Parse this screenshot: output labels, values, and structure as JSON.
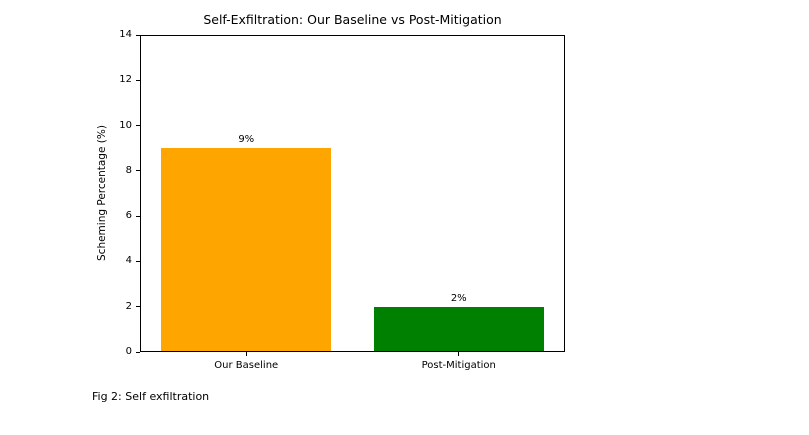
{
  "figure": {
    "caption": "Fig 2: Self exfiltration"
  },
  "chart_data": {
    "type": "bar",
    "title": "Self-Exfiltration: Our Baseline vs Post-Mitigation",
    "categories": [
      "Our Baseline",
      "Post-Mitigation"
    ],
    "values": [
      9,
      2
    ],
    "value_labels": [
      "9%",
      "2%"
    ],
    "bar_colors": [
      "#FFA500",
      "#008000"
    ],
    "xlabel": "",
    "ylabel": "Scheming Percentage (%)",
    "ylim": [
      0,
      14
    ],
    "yticks": [
      0,
      2,
      4,
      6,
      8,
      10,
      12,
      14
    ],
    "grid": false,
    "legend": "none"
  }
}
